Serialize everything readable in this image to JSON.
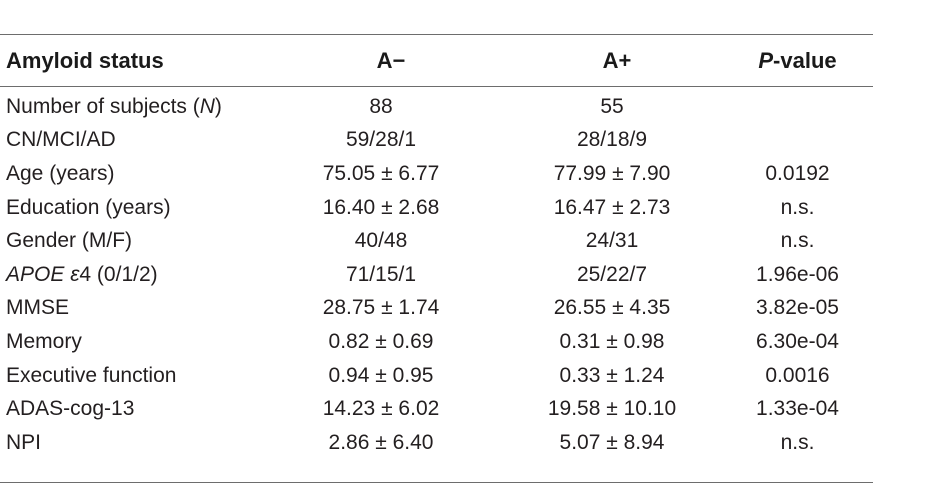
{
  "table": {
    "headers": {
      "col1": "Amyloid status",
      "col2": "A−",
      "col3": "A+",
      "col4_italic": "P",
      "col4_rest": "-value"
    },
    "rows": [
      {
        "label_pre": "Number of subjects (",
        "label_italic": "N",
        "label_post": ")",
        "a_neg": "88",
        "a_pos": "55",
        "p": ""
      },
      {
        "label_pre": "CN/MCI/AD",
        "label_italic": "",
        "label_post": "",
        "a_neg": "59/28/1",
        "a_pos": "28/18/9",
        "p": ""
      },
      {
        "label_pre": "Age (years)",
        "label_italic": "",
        "label_post": "",
        "a_neg": "75.05 ± 6.77",
        "a_pos": "77.99 ± 7.90",
        "p": "0.0192"
      },
      {
        "label_pre": "Education (years)",
        "label_italic": "",
        "label_post": "",
        "a_neg": "16.40 ± 2.68",
        "a_pos": "16.47 ± 2.73",
        "p": "n.s."
      },
      {
        "label_pre": "Gender (M/F)",
        "label_italic": "",
        "label_post": "",
        "a_neg": "40/48",
        "a_pos": "24/31",
        "p": "n.s."
      },
      {
        "label_pre": "",
        "label_italic": "APOE ε",
        "label_post": "4 (0/1/2)",
        "a_neg": "71/15/1",
        "a_pos": "25/22/7",
        "p": "1.96e-06"
      },
      {
        "label_pre": "MMSE",
        "label_italic": "",
        "label_post": "",
        "a_neg": "28.75 ± 1.74",
        "a_pos": "26.55 ± 4.35",
        "p": "3.82e-05"
      },
      {
        "label_pre": "Memory",
        "label_italic": "",
        "label_post": "",
        "a_neg": "0.82 ± 0.69",
        "a_pos": "0.31 ± 0.98",
        "p": "6.30e-04"
      },
      {
        "label_pre": "Executive function",
        "label_italic": "",
        "label_post": "",
        "a_neg": "0.94 ± 0.95",
        "a_pos": "0.33 ± 1.24",
        "p": "0.0016"
      },
      {
        "label_pre": "ADAS-cog-13",
        "label_italic": "",
        "label_post": "",
        "a_neg": "14.23 ± 6.02",
        "a_pos": "19.58 ± 10.10",
        "p": "1.33e-04"
      },
      {
        "label_pre": "NPI",
        "label_italic": "",
        "label_post": "",
        "a_neg": "2.86 ± 6.40",
        "a_pos": "5.07 ± 8.94",
        "p": "n.s."
      }
    ]
  }
}
